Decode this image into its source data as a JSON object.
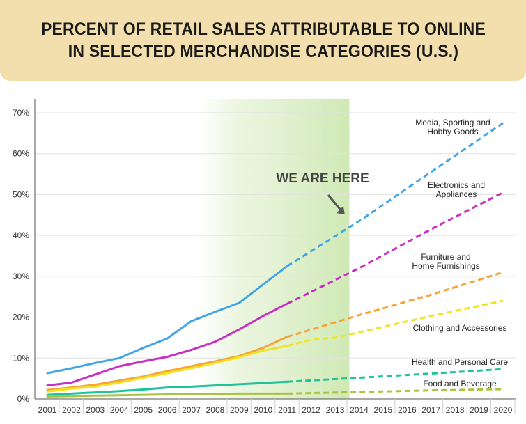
{
  "chart_data": {
    "type": "line",
    "title": "PERCENT OF RETAIL SALES ATTRIBUTABLE TO ONLINE IN SELECTED MERCHANDISE CATEGORIES (U.S.)",
    "xlabel": "",
    "ylabel": "",
    "x": [
      2001,
      2002,
      2003,
      2004,
      2005,
      2006,
      2007,
      2008,
      2009,
      2010,
      2011,
      2012,
      2013,
      2014,
      2015,
      2016,
      2017,
      2018,
      2019,
      2020
    ],
    "x_tick_labels": [
      "2001",
      "2002",
      "2003",
      "2004",
      "2005",
      "2006",
      "2007",
      "2008",
      "2009",
      "2010",
      "2011",
      "2012",
      "2013",
      "2014",
      "2015",
      "2016",
      "2017",
      "2018",
      "2019",
      "2020"
    ],
    "xlim": [
      2001,
      2020
    ],
    "ylim": [
      0,
      70
    ],
    "y_ticks": [
      0,
      10,
      20,
      30,
      40,
      50,
      60,
      70
    ],
    "y_tick_labels": [
      "0%",
      "10%",
      "20%",
      "30%",
      "40%",
      "50%",
      "60%",
      "70%"
    ],
    "grid": "horizontal",
    "highlight_band": {
      "from": 2007,
      "to": 2014,
      "color": "#cfe9b4"
    },
    "annotation": {
      "text": "WE ARE HERE",
      "arrow_target": {
        "x": 2013.4,
        "y": 45
      }
    },
    "series": [
      {
        "name": "Media, Sporting and Hobby Goods",
        "label_lines": [
          "Media, Sporting and",
          "Hobby Goods"
        ],
        "color": "#42a5ea",
        "actual": [
          [
            2001,
            6.3
          ],
          [
            2002,
            7.5
          ],
          [
            2003,
            8.8
          ],
          [
            2004,
            10
          ],
          [
            2005,
            12.5
          ],
          [
            2006,
            14.8
          ],
          [
            2007,
            19
          ],
          [
            2008,
            21.3
          ],
          [
            2009,
            23.5
          ],
          [
            2010,
            28
          ],
          [
            2011,
            32.5
          ]
        ],
        "forecast": [
          [
            2011,
            32.5
          ],
          [
            2014,
            43.5
          ],
          [
            2017,
            55.5
          ],
          [
            2020,
            67.5
          ]
        ]
      },
      {
        "name": "Electronics and Appliances",
        "label_lines": [
          "Electronics and",
          "Appliances"
        ],
        "color": "#c92fc2",
        "actual": [
          [
            2001,
            3.3
          ],
          [
            2002,
            4
          ],
          [
            2003,
            6
          ],
          [
            2004,
            8
          ],
          [
            2005,
            9.2
          ],
          [
            2006,
            10.3
          ],
          [
            2007,
            12
          ],
          [
            2008,
            14
          ],
          [
            2009,
            17
          ],
          [
            2010,
            20.3
          ],
          [
            2011,
            23.3
          ]
        ],
        "forecast": [
          [
            2011,
            23.3
          ],
          [
            2014,
            32
          ],
          [
            2017,
            41.5
          ],
          [
            2020,
            50.5
          ]
        ]
      },
      {
        "name": "Furniture and Home Furnishings",
        "label_lines": [
          "Furniture and",
          "Home Furnishings"
        ],
        "color": "#f6a33a",
        "actual": [
          [
            2001,
            2.2
          ],
          [
            2002,
            2.8
          ],
          [
            2003,
            3.5
          ],
          [
            2004,
            4.5
          ],
          [
            2005,
            5.5
          ],
          [
            2006,
            6.8
          ],
          [
            2007,
            8
          ],
          [
            2008,
            9.2
          ],
          [
            2009,
            10.5
          ],
          [
            2010,
            12.5
          ],
          [
            2011,
            15.2
          ]
        ],
        "forecast": [
          [
            2011,
            15.2
          ],
          [
            2014,
            20.5
          ],
          [
            2017,
            25.5
          ],
          [
            2020,
            31
          ]
        ]
      },
      {
        "name": "Clothing and Accessories",
        "label_lines": [
          "Clothing and Accessories"
        ],
        "color": "#f2e51f",
        "actual": [
          [
            2001,
            1.8
          ],
          [
            2002,
            2.5
          ],
          [
            2003,
            3
          ],
          [
            2004,
            4
          ],
          [
            2005,
            5.2
          ],
          [
            2006,
            6.3
          ],
          [
            2007,
            7.5
          ],
          [
            2008,
            8.8
          ],
          [
            2009,
            10.2
          ],
          [
            2010,
            11.8
          ],
          [
            2011,
            13
          ]
        ],
        "forecast": [
          [
            2011,
            13
          ],
          [
            2012,
            14.5
          ],
          [
            2013,
            15
          ],
          [
            2014,
            16.3
          ],
          [
            2017,
            20.3
          ],
          [
            2020,
            24
          ]
        ]
      },
      {
        "name": "Health and Personal Care",
        "label_lines": [
          "Health and Personal Care"
        ],
        "color": "#1fc39a",
        "actual": [
          [
            2001,
            1
          ],
          [
            2002,
            1.3
          ],
          [
            2003,
            1.6
          ],
          [
            2004,
            1.9
          ],
          [
            2005,
            2.3
          ],
          [
            2006,
            2.8
          ],
          [
            2007,
            3
          ],
          [
            2008,
            3.3
          ],
          [
            2009,
            3.6
          ],
          [
            2010,
            3.9
          ],
          [
            2011,
            4.2
          ]
        ],
        "forecast": [
          [
            2011,
            4.2
          ],
          [
            2014,
            5.2
          ],
          [
            2017,
            6.2
          ],
          [
            2020,
            7.3
          ]
        ]
      },
      {
        "name": "Food and Beverage",
        "label_lines": [
          "Food and Beverage"
        ],
        "color": "#a8c441",
        "actual": [
          [
            2001,
            0.6
          ],
          [
            2002,
            0.7
          ],
          [
            2003,
            0.8
          ],
          [
            2004,
            0.9
          ],
          [
            2005,
            1
          ],
          [
            2006,
            1.1
          ],
          [
            2007,
            1.2
          ],
          [
            2008,
            1.2
          ],
          [
            2009,
            1.3
          ],
          [
            2010,
            1.3
          ],
          [
            2011,
            1.3
          ]
        ],
        "forecast": [
          [
            2011,
            1.3
          ],
          [
            2014,
            1.7
          ],
          [
            2017,
            2.1
          ],
          [
            2020,
            2.4
          ]
        ]
      }
    ]
  }
}
